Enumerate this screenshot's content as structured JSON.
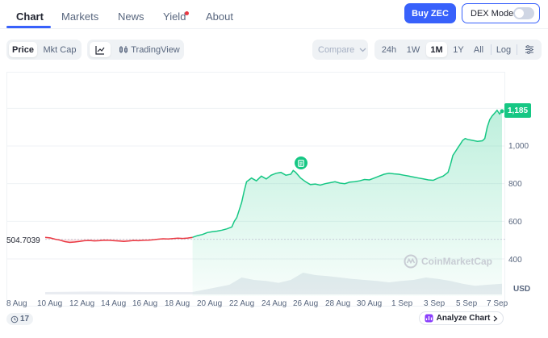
{
  "nav": {
    "tabs": [
      {
        "label": "Chart"
      },
      {
        "label": "Markets"
      },
      {
        "label": "News"
      },
      {
        "label": "Yield"
      },
      {
        "label": "About"
      }
    ],
    "buy_label": "Buy ZEC",
    "dex_label": "DEX Mode"
  },
  "toolbar": {
    "metric_tabs": [
      "Price",
      "Mkt Cap"
    ],
    "tradingview_label": "TradingView",
    "compare_label": "Compare",
    "ranges": [
      "24h",
      "1W",
      "1M",
      "1Y",
      "All"
    ],
    "log_label": "Log"
  },
  "chart": {
    "current_price_label": "1,185",
    "start_price_label": "504.7039",
    "y_ticks": [
      "1,000",
      "800",
      "600",
      "400"
    ],
    "currency": "USD",
    "x_ticks": [
      "8 Aug",
      "10 Aug",
      "12 Aug",
      "14 Aug",
      "16 Aug",
      "18 Aug",
      "20 Aug",
      "22 Aug",
      "24 Aug",
      "26 Aug",
      "28 Aug",
      "30 Aug",
      "1 Sep",
      "3 Sep",
      "5 Sep",
      "7 Sep"
    ],
    "watermark": "CoinMarketCap",
    "up_color": "#16c784",
    "down_color": "#ea3943"
  },
  "chart_data": {
    "type": "line",
    "ylim": [
      360,
      1300
    ],
    "y_ticks": [
      400,
      600,
      800,
      1000
    ],
    "baseline": 504.7,
    "points": [
      [
        0,
        515
      ],
      [
        2,
        512
      ],
      [
        4,
        505
      ],
      [
        6,
        500
      ],
      [
        8,
        492
      ],
      [
        10,
        488
      ],
      [
        12,
        490
      ],
      [
        14,
        493
      ],
      [
        16,
        497
      ],
      [
        18,
        498
      ],
      [
        20,
        496
      ],
      [
        22,
        497
      ],
      [
        24,
        500
      ],
      [
        26,
        499
      ],
      [
        28,
        497
      ],
      [
        30,
        495
      ],
      [
        32,
        493
      ],
      [
        34,
        495
      ],
      [
        36,
        498
      ],
      [
        38,
        497
      ],
      [
        40,
        499
      ],
      [
        42,
        500
      ],
      [
        44,
        502
      ],
      [
        46,
        505
      ],
      [
        48,
        507
      ],
      [
        50,
        506
      ],
      [
        52,
        508
      ],
      [
        54,
        510
      ],
      [
        56,
        509
      ],
      [
        58,
        511
      ],
      [
        60,
        515
      ],
      [
        62,
        524
      ],
      [
        64,
        530
      ],
      [
        66,
        540
      ],
      [
        68,
        545
      ],
      [
        70,
        548
      ],
      [
        72,
        553
      ],
      [
        74,
        560
      ],
      [
        76,
        570
      ],
      [
        77,
        600
      ],
      [
        78,
        620
      ],
      [
        79,
        660
      ],
      [
        80,
        700
      ],
      [
        81,
        760
      ],
      [
        82,
        810
      ],
      [
        83,
        820
      ],
      [
        84,
        830
      ],
      [
        86,
        815
      ],
      [
        88,
        840
      ],
      [
        90,
        825
      ],
      [
        92,
        845
      ],
      [
        94,
        855
      ],
      [
        96,
        860
      ],
      [
        98,
        845
      ],
      [
        100,
        850
      ],
      [
        101,
        870
      ],
      [
        102,
        860
      ],
      [
        104,
        830
      ],
      [
        106,
        810
      ],
      [
        108,
        795
      ],
      [
        110,
        798
      ],
      [
        112,
        792
      ],
      [
        114,
        800
      ],
      [
        116,
        805
      ],
      [
        118,
        810
      ],
      [
        120,
        803
      ],
      [
        122,
        800
      ],
      [
        124,
        808
      ],
      [
        126,
        810
      ],
      [
        128,
        815
      ],
      [
        130,
        822
      ],
      [
        132,
        820
      ],
      [
        134,
        830
      ],
      [
        136,
        840
      ],
      [
        138,
        850
      ],
      [
        140,
        855
      ],
      [
        142,
        852
      ],
      [
        144,
        850
      ],
      [
        146,
        845
      ],
      [
        148,
        840
      ],
      [
        150,
        835
      ],
      [
        152,
        830
      ],
      [
        154,
        825
      ],
      [
        156,
        820
      ],
      [
        158,
        818
      ],
      [
        160,
        830
      ],
      [
        162,
        840
      ],
      [
        164,
        860
      ],
      [
        165,
        900
      ],
      [
        166,
        950
      ],
      [
        167,
        970
      ],
      [
        168,
        990
      ],
      [
        169,
        1010
      ],
      [
        170,
        1030
      ],
      [
        171,
        1040
      ],
      [
        172,
        1035
      ],
      [
        174,
        1030
      ],
      [
        176,
        1025
      ],
      [
        178,
        1028
      ],
      [
        179,
        1040
      ],
      [
        180,
        1100
      ],
      [
        181,
        1140
      ],
      [
        182,
        1160
      ],
      [
        183,
        1175
      ],
      [
        184,
        1190
      ],
      [
        185,
        1170
      ],
      [
        186,
        1185
      ]
    ],
    "volume": [
      [
        0,
        0.05
      ],
      [
        20,
        0.06
      ],
      [
        40,
        0.05
      ],
      [
        60,
        0.05
      ],
      [
        75,
        0.2
      ],
      [
        80,
        0.35
      ],
      [
        85,
        0.3
      ],
      [
        90,
        0.28
      ],
      [
        95,
        0.24
      ],
      [
        100,
        0.3
      ],
      [
        105,
        0.45
      ],
      [
        110,
        0.4
      ],
      [
        115,
        0.38
      ],
      [
        120,
        0.35
      ],
      [
        125,
        0.32
      ],
      [
        130,
        0.3
      ],
      [
        135,
        0.28
      ],
      [
        140,
        0.25
      ],
      [
        145,
        0.28
      ],
      [
        150,
        0.3
      ],
      [
        155,
        0.35
      ],
      [
        160,
        0.32
      ],
      [
        165,
        0.28
      ],
      [
        170,
        0.22
      ],
      [
        175,
        0.18
      ],
      [
        180,
        0.2
      ],
      [
        186,
        0.22
      ]
    ],
    "x_range": [
      0,
      186
    ]
  },
  "bottom": {
    "events_count": "17",
    "analyze_label": "Analyze Chart"
  }
}
